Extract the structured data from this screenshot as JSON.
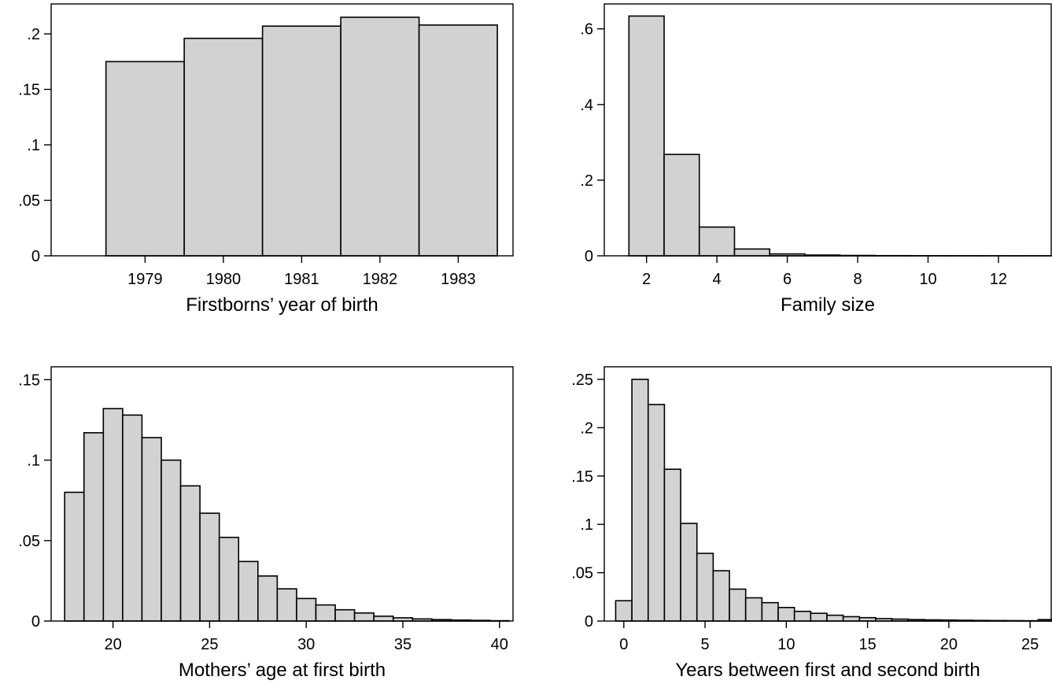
{
  "chart_data": [
    {
      "type": "bar",
      "xlabel": "Firstborns’ year of birth",
      "ylabel": "",
      "x": [
        1979,
        1980,
        1981,
        1982,
        1983
      ],
      "values": [
        0.175,
        0.196,
        0.207,
        0.215,
        0.208
      ],
      "bin_width": 1,
      "xlim": [
        1977.8,
        1983.7
      ],
      "ylim": [
        0,
        0.227
      ],
      "xticks": [
        1979,
        1980,
        1981,
        1982,
        1983
      ],
      "xtick_labels": [
        "1979",
        "1980",
        "1981",
        "1982",
        "1983"
      ],
      "yticks": [
        0,
        0.05,
        0.1,
        0.15,
        0.2
      ],
      "ytick_labels": [
        "0",
        ".05",
        ".1",
        ".15",
        ".2"
      ],
      "grid": false
    },
    {
      "type": "bar",
      "xlabel": "Family size",
      "ylabel": "",
      "x": [
        2,
        3,
        4,
        5,
        6,
        7,
        8,
        9,
        10,
        11,
        12,
        13
      ],
      "values": [
        0.634,
        0.268,
        0.076,
        0.018,
        0.005,
        0.002,
        0.001,
        0.0005,
        0.0003,
        0.0002,
        0.0001,
        0.0001
      ],
      "bin_width": 1,
      "xlim": [
        0.8,
        13.5
      ],
      "ylim": [
        0,
        0.666
      ],
      "xticks": [
        2,
        4,
        6,
        8,
        10,
        12
      ],
      "xtick_labels": [
        "2",
        "4",
        "6",
        "8",
        "10",
        "12"
      ],
      "yticks": [
        0,
        0.2,
        0.4,
        0.6
      ],
      "ytick_labels": [
        "0",
        ".2",
        ".4",
        ".6"
      ],
      "grid": false
    },
    {
      "type": "bar",
      "xlabel": "Mothers’ age at first birth",
      "ylabel": "",
      "x": [
        18,
        19,
        20,
        21,
        22,
        23,
        24,
        25,
        26,
        27,
        28,
        29,
        30,
        31,
        32,
        33,
        34,
        35,
        36,
        37,
        38,
        39,
        40
      ],
      "values": [
        0.08,
        0.117,
        0.132,
        0.128,
        0.114,
        0.1,
        0.084,
        0.067,
        0.052,
        0.037,
        0.028,
        0.02,
        0.014,
        0.01,
        0.007,
        0.005,
        0.003,
        0.002,
        0.0013,
        0.0009,
        0.0006,
        0.0004,
        0.0002
      ],
      "bin_width": 1,
      "xlim": [
        16.8,
        40.7
      ],
      "ylim": [
        0,
        0.158
      ],
      "xticks": [
        20,
        25,
        30,
        35,
        40
      ],
      "xtick_labels": [
        "20",
        "25",
        "30",
        "35",
        "40"
      ],
      "yticks": [
        0,
        0.05,
        0.1,
        0.15
      ],
      "ytick_labels": [
        "0",
        ".05",
        ".1",
        ".15"
      ],
      "grid": false
    },
    {
      "type": "bar",
      "xlabel": "Years between first and second birth",
      "ylabel": "",
      "x": [
        0,
        1,
        2,
        3,
        4,
        5,
        6,
        7,
        8,
        9,
        10,
        11,
        12,
        13,
        14,
        15,
        16,
        17,
        18,
        19,
        20,
        21,
        22,
        23,
        24,
        25,
        26
      ],
      "values": [
        0.021,
        0.25,
        0.224,
        0.157,
        0.101,
        0.07,
        0.052,
        0.033,
        0.024,
        0.019,
        0.014,
        0.01,
        0.008,
        0.006,
        0.0045,
        0.0035,
        0.0025,
        0.002,
        0.0015,
        0.0012,
        0.001,
        0.0008,
        0.0006,
        0.0005,
        0.0004,
        0.0003,
        0.0015
      ],
      "bin_width": 1,
      "xlim": [
        -1.2,
        26.3
      ],
      "ylim": [
        0,
        0.263
      ],
      "xticks": [
        0,
        5,
        10,
        15,
        20,
        25
      ],
      "xtick_labels": [
        "0",
        "5",
        "10",
        "15",
        "20",
        "25"
      ],
      "yticks": [
        0,
        0.05,
        0.1,
        0.15,
        0.2,
        0.25
      ],
      "ytick_labels": [
        "0",
        ".05",
        ".1",
        ".15",
        ".2",
        ".25"
      ],
      "grid": false
    }
  ]
}
